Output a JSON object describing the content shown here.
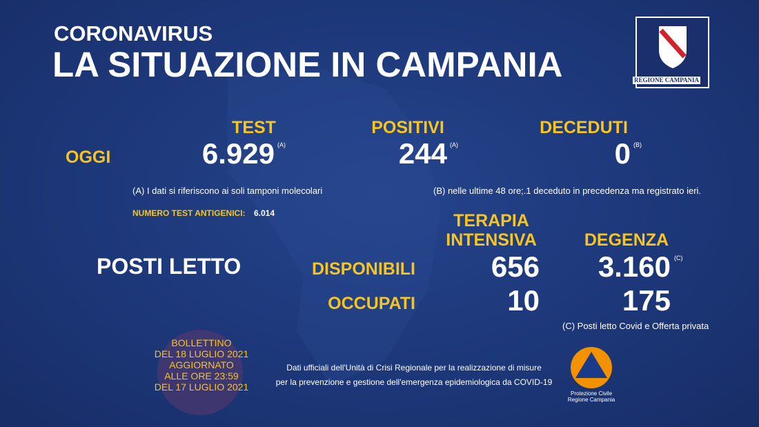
{
  "header": {
    "kicker": "CORONAVIRUS",
    "title": "LA SITUAZIONE IN CAMPANIA"
  },
  "logo": {
    "label": "REGIONE CAMPANIA"
  },
  "today": {
    "label": "OGGI",
    "columns": [
      {
        "heading": "TEST",
        "value": "6.929",
        "note_ref": "(A)"
      },
      {
        "heading": "POSITIVI",
        "value": "244",
        "note_ref": "(A)"
      },
      {
        "heading": "DECEDUTI",
        "value": "0",
        "note_ref": "(B)"
      }
    ]
  },
  "notes": {
    "a": "(A) I dati si riferiscono ai soli tamponi molecolari",
    "b": "(B) nelle ultime 48 ore;.1 deceduto in precedenza ma registrato ieri.",
    "c": "(C) Posti letto Covid e Offerta privata"
  },
  "antigen": {
    "label": "NUMERO TEST ANTIGENICI:",
    "value": "6.014"
  },
  "beds": {
    "label": "POSTI LETTO",
    "headers": [
      [
        "TERAPIA",
        "INTENSIVA"
      ],
      [
        "DEGENZA"
      ]
    ],
    "rows": [
      {
        "label": "DISPONIBILI",
        "values": [
          "656",
          "3.160"
        ],
        "note_ref": "(C)"
      },
      {
        "label": "OCCUPATI",
        "values": [
          "10",
          "175"
        ]
      }
    ]
  },
  "bulletin": [
    "BOLLETTINO",
    "DEL 18 LUGLIO 2021",
    "AGGIORNATO",
    "ALLE ORE 23:59",
    "DEL 17 LUGLIO 2021"
  ],
  "footer": [
    "Dati ufficiali dell'Unità di Crisi Regionale per la realizzazione di misure",
    "per la prevenzione e gestione dell'emergenza epidemiologica da COVID-19"
  ],
  "civil_protection": [
    "Protezione Civile",
    "Regione Campania"
  ]
}
